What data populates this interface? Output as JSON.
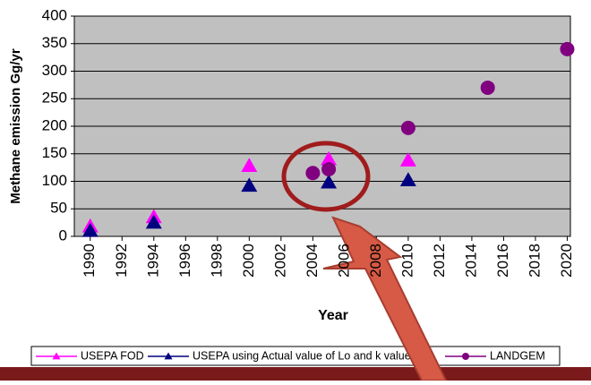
{
  "chart_data": {
    "type": "scatter",
    "x_label": "Year",
    "y_label": "Methane emission Gg/yr",
    "xlim": [
      1989,
      2020.2
    ],
    "xticks": [
      1990,
      1992,
      1994,
      1996,
      1998,
      2000,
      2002,
      2004,
      2006,
      2008,
      2010,
      2012,
      2014,
      2016,
      2018,
      2020
    ],
    "ylim": [
      0,
      400
    ],
    "yticks": [
      0,
      50,
      100,
      150,
      200,
      250,
      300,
      350,
      400
    ],
    "grid": true,
    "series": [
      {
        "name": "USEPA FOD",
        "color": "#ff00ff",
        "marker": "triangle",
        "x": [
          1990,
          1994,
          2000,
          2005,
          2010
        ],
        "values": [
          18,
          35,
          128,
          140,
          138
        ]
      },
      {
        "name": "USEPA  using Actual value of Lo and k value",
        "color": "#000080",
        "marker": "triangle",
        "x": [
          1990,
          1994,
          2000,
          2005,
          2010
        ],
        "values": [
          10,
          25,
          92,
          98,
          102
        ]
      },
      {
        "name": "LANDGEM",
        "color": "#800080",
        "marker": "circle",
        "x": [
          2004,
          2005,
          2010,
          2015,
          2020
        ],
        "values": [
          115,
          122,
          197,
          270,
          340
        ]
      }
    ]
  }
}
